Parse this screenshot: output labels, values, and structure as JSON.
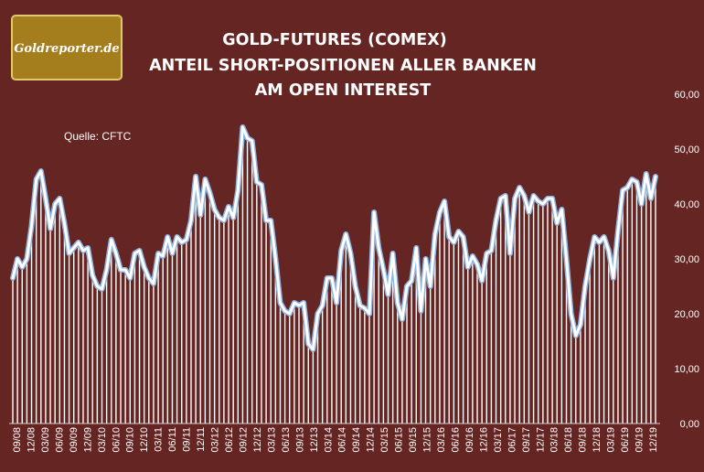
{
  "logo_text": "Goldreporter.de",
  "colors": {
    "background": "#652623",
    "line": "#ffffff",
    "line_glow": "#8fb3e0",
    "logo_gold": "#a47d1d"
  },
  "chart_data": {
    "type": "line",
    "title_lines": [
      "GOLD-FUTURES (COMEX)",
      "ANTEIL SHORT-POSITIONEN ALLER BANKEN",
      "AM OPEN INTEREST"
    ],
    "source": "Quelle: CFTC",
    "ylim": [
      0,
      60
    ],
    "y_ticks": [
      "0,00",
      "10,00",
      "20,00",
      "30,00",
      "40,00",
      "50,00",
      "60,00"
    ],
    "x_tick_labels": [
      "09/08",
      "12/08",
      "03/09",
      "06/09",
      "09/09",
      "12/09",
      "03/10",
      "06/10",
      "09/10",
      "12/10",
      "03/11",
      "06/11",
      "09/11",
      "12/11",
      "03/12",
      "06/12",
      "09/12",
      "12/12",
      "03/13",
      "06/13",
      "09/13",
      "12/13",
      "03/14",
      "06/14",
      "09/14",
      "12/14",
      "03/15",
      "06/15",
      "09/15",
      "12/15",
      "03/16",
      "06/16",
      "09/16",
      "12/16",
      "03/17",
      "06/17",
      "09/17",
      "12/17",
      "03/18",
      "06/18",
      "09/18",
      "12/18",
      "03/19",
      "06/19",
      "09/19",
      "12/19"
    ],
    "series": [
      {
        "values": [
          26.5,
          30,
          28.5,
          30,
          36,
          44.5,
          46,
          41,
          35.5,
          40,
          41,
          36.5,
          31,
          32,
          33,
          31.5,
          32,
          27,
          25,
          24.5,
          28,
          33.5,
          31,
          28,
          28,
          26.5,
          31,
          31.5,
          28.5,
          26.5,
          25.5,
          31,
          30.5,
          34,
          31,
          34,
          33,
          33.5,
          37,
          45,
          38,
          44.5,
          42,
          39,
          37.5,
          37,
          39.5,
          37.5,
          42.5,
          54,
          52,
          51.5,
          44,
          43.5,
          37,
          37,
          30,
          22,
          20.5,
          20,
          22,
          21.5,
          22,
          14.5,
          13.5,
          20,
          21.5,
          26.5,
          26.5,
          22,
          31.5,
          34.5,
          31,
          25,
          21.5,
          21,
          20,
          38.5,
          32,
          28,
          23.5,
          31,
          22,
          19,
          25,
          26,
          32,
          20.5,
          30,
          25,
          34.5,
          38.5,
          40.5,
          34,
          33,
          35,
          34,
          28.5,
          30.5,
          29,
          26,
          31,
          31.5,
          37,
          41,
          41.5,
          31,
          41,
          43,
          41.5,
          38.5,
          41.5,
          40.5,
          40,
          41,
          41,
          36.5,
          39,
          30,
          20,
          16,
          18,
          25,
          30,
          34,
          33,
          34,
          31.5,
          26.5,
          35,
          42.5,
          43,
          44.5,
          44,
          40,
          45.5,
          41,
          45
        ]
      }
    ]
  }
}
